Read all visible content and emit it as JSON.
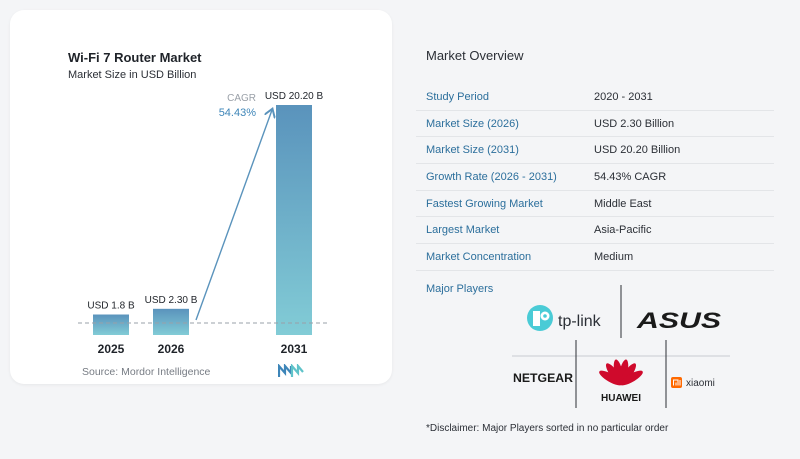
{
  "chart_data": {
    "type": "bar",
    "title": "Wi-Fi 7 Router Market",
    "subtitle": "Market Size in USD Billion",
    "categories": [
      "2025",
      "2026",
      "2031"
    ],
    "values": [
      1.8,
      2.3,
      20.2
    ],
    "data_labels": [
      "USD 1.8 B",
      "USD 2.30 B",
      "USD 20.20 B"
    ],
    "annotation": {
      "label": "CAGR",
      "value": "54.43%"
    },
    "grid": false,
    "legend": "none"
  },
  "source": "Source:  Mordor Intelligence",
  "overview": {
    "title": "Market Overview",
    "rows": [
      {
        "key": "Study Period",
        "value": "2020 - 2031"
      },
      {
        "key": "Market Size (2026)",
        "value": "USD 2.30 Billion"
      },
      {
        "key": "Market Size (2031)",
        "value": "USD 20.20 Billion"
      },
      {
        "key": "Growth Rate (2026 - 2031)",
        "value": "54.43% CAGR"
      },
      {
        "key": "Fastest Growing Market",
        "value": "Middle East"
      },
      {
        "key": "Largest Market",
        "value": "Asia-Pacific"
      },
      {
        "key": "Market Concentration",
        "value": "Medium"
      }
    ]
  },
  "players": {
    "title": "Major Players",
    "logos": [
      "tp-link",
      "ASUS",
      "NETGEAR",
      "HUAWEI",
      "xiaomi"
    ],
    "brand_colors": {
      "tplink": "#4acbd6",
      "huawei": "#cf0a2c",
      "xiaomi": "#ff6900",
      "asus": "#1a1a1a"
    }
  },
  "disclaimer": "*Disclaimer: Major Players sorted in no particular order",
  "colors": {
    "bar_top": "#5a93bc",
    "bar_bottom": "#82ccd6",
    "accent": "#2c6f9c",
    "cagr": "#3d85b8"
  }
}
